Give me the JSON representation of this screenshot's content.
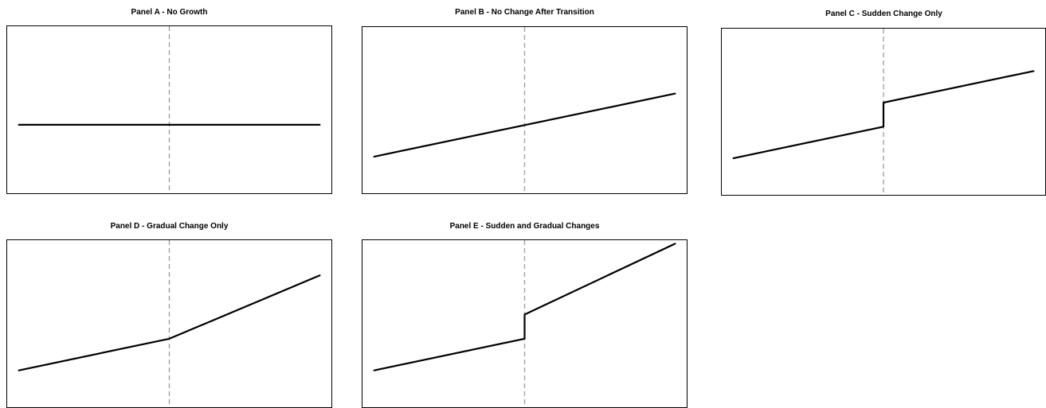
{
  "chart_data": [
    {
      "type": "line",
      "title": "Panel A - No Growth",
      "xlim": [
        0,
        10
      ],
      "ylim": [
        0,
        10
      ],
      "transition_x": 5,
      "series": [
        {
          "x": [
            0.35,
            5,
            9.65
          ],
          "y": [
            4.1,
            4.1,
            4.1
          ]
        }
      ]
    },
    {
      "type": "line",
      "title": "Panel B - No Change After Transition",
      "xlim": [
        0,
        10
      ],
      "ylim": [
        0,
        10
      ],
      "transition_x": 5,
      "series": [
        {
          "x": [
            0.35,
            5,
            9.65
          ],
          "y": [
            2.2,
            4.1,
            6.0
          ]
        }
      ]
    },
    {
      "type": "line",
      "title": "Panel C - Sudden Change Only",
      "xlim": [
        0,
        10
      ],
      "ylim": [
        0,
        10
      ],
      "transition_x": 5,
      "series": [
        {
          "x": [
            0.35,
            5,
            5,
            9.65
          ],
          "y": [
            2.2,
            4.1,
            5.55,
            7.45
          ]
        }
      ]
    },
    {
      "type": "line",
      "title": "Panel D - Gradual Change Only",
      "xlim": [
        0,
        10
      ],
      "ylim": [
        0,
        10
      ],
      "transition_x": 5,
      "series": [
        {
          "x": [
            0.35,
            5,
            9.65
          ],
          "y": [
            2.2,
            4.1,
            7.9
          ]
        }
      ]
    },
    {
      "type": "line",
      "title": "Panel E - Sudden and Gradual Changes",
      "xlim": [
        0,
        10
      ],
      "ylim": [
        0,
        10
      ],
      "transition_x": 5,
      "series": [
        {
          "x": [
            0.35,
            5,
            5,
            9.65
          ],
          "y": [
            2.2,
            4.1,
            5.55,
            9.8
          ]
        }
      ]
    }
  ],
  "colors": {
    "line": "#000000",
    "transition": "#9a9a9a",
    "frame": "#000000"
  }
}
